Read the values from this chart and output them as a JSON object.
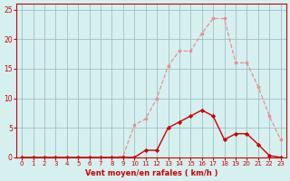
{
  "hours": [
    0,
    1,
    2,
    3,
    4,
    5,
    6,
    7,
    8,
    9,
    10,
    11,
    12,
    13,
    14,
    15,
    16,
    17,
    18,
    19,
    20,
    21,
    22,
    23
  ],
  "rafales": [
    0,
    0,
    0,
    0,
    0,
    0,
    0,
    0,
    0,
    0.2,
    5.5,
    6.5,
    10,
    15.5,
    18,
    18,
    21,
    23.5,
    23.5,
    16,
    16,
    12,
    7,
    3
  ],
  "vent_moyen": [
    0,
    0,
    0,
    0,
    0,
    0,
    0,
    0,
    0,
    0,
    0,
    1.2,
    1.2,
    5,
    6,
    7,
    8,
    7,
    3,
    4,
    4,
    2.2,
    0.3,
    0
  ],
  "bg_color": "#d6f0f0",
  "grid_color": "#a0c0c0",
  "line_color_rafales": "#e89090",
  "line_color_vent": "#cc0000",
  "marker_color_rafales": "#e89090",
  "marker_color_vent": "#cc0000",
  "xlabel": "Vent moyen/en rafales ( km/h )",
  "ylim": [
    0,
    26
  ],
  "xlim_min": -0.5,
  "xlim_max": 23.5,
  "yticks": [
    0,
    5,
    10,
    15,
    20,
    25
  ],
  "xticks": [
    0,
    1,
    2,
    3,
    4,
    5,
    6,
    7,
    8,
    9,
    10,
    11,
    12,
    13,
    14,
    15,
    16,
    17,
    18,
    19,
    20,
    21,
    22,
    23
  ]
}
